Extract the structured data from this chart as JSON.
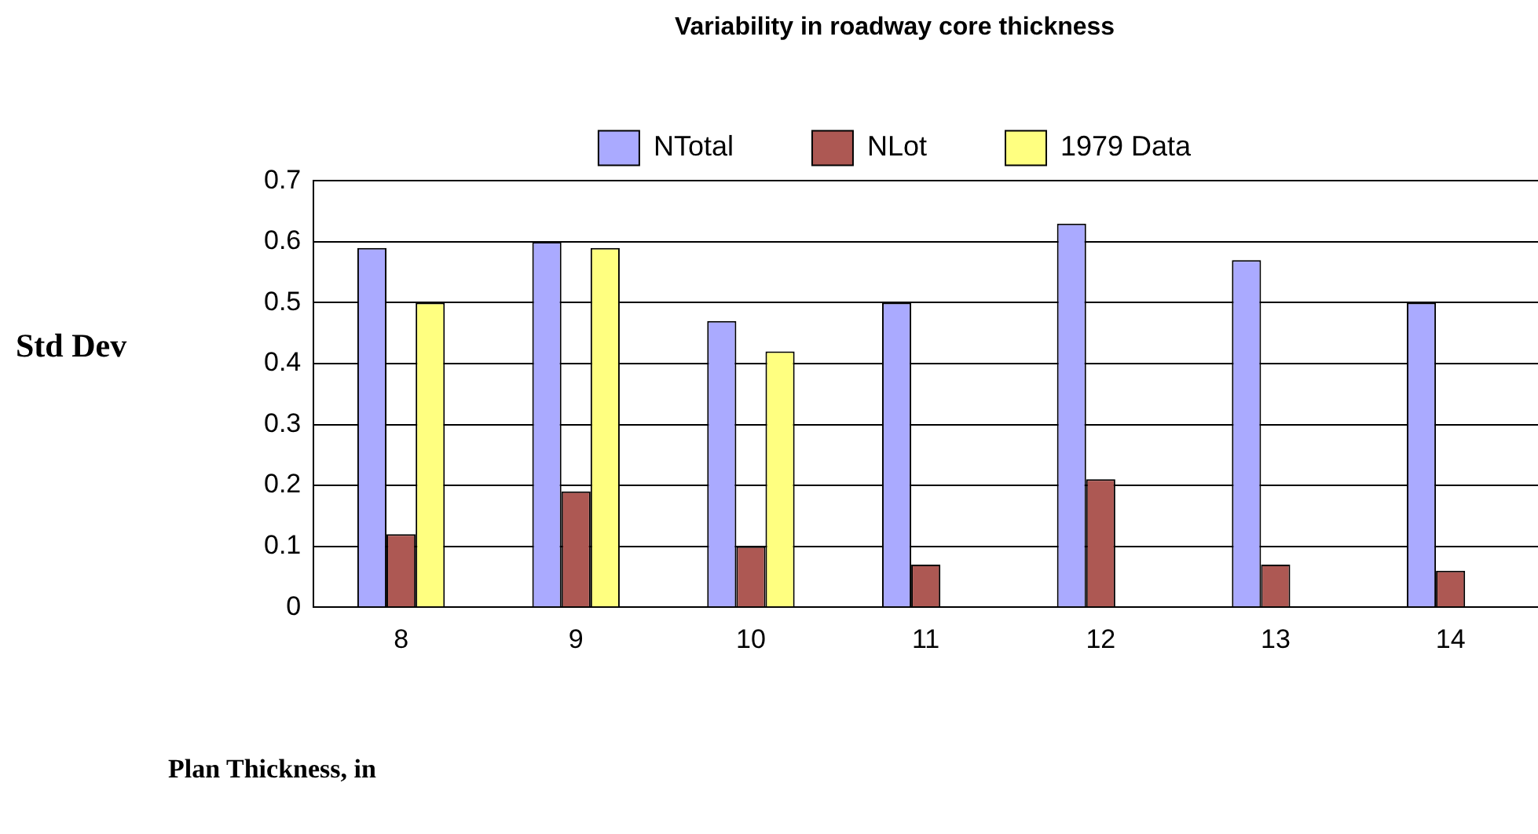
{
  "chart_data": {
    "type": "bar",
    "title": "Variability in roadway core thickness",
    "xlabel": "Plan Thickness, in",
    "ylabel": "Std Dev",
    "categories": [
      "8",
      "9",
      "10",
      "11",
      "12",
      "13",
      "14"
    ],
    "series": [
      {
        "name": "NTotal",
        "color": "#aaaaff",
        "values": [
          0.59,
          0.6,
          0.47,
          0.5,
          0.63,
          0.57,
          0.5
        ]
      },
      {
        "name": "NLot",
        "color": "#ad5853",
        "values": [
          0.12,
          0.19,
          0.1,
          0.07,
          0.21,
          0.07,
          0.06
        ]
      },
      {
        "name": "1979 Data",
        "color": "#ffff80",
        "values": [
          0.5,
          0.59,
          0.42,
          null,
          null,
          null,
          null
        ]
      }
    ],
    "ylim": [
      0,
      0.7
    ],
    "yticks": [
      0,
      0.1,
      0.2,
      0.3,
      0.4,
      0.5,
      0.6,
      0.7
    ],
    "grid": "y",
    "legend": "top"
  }
}
